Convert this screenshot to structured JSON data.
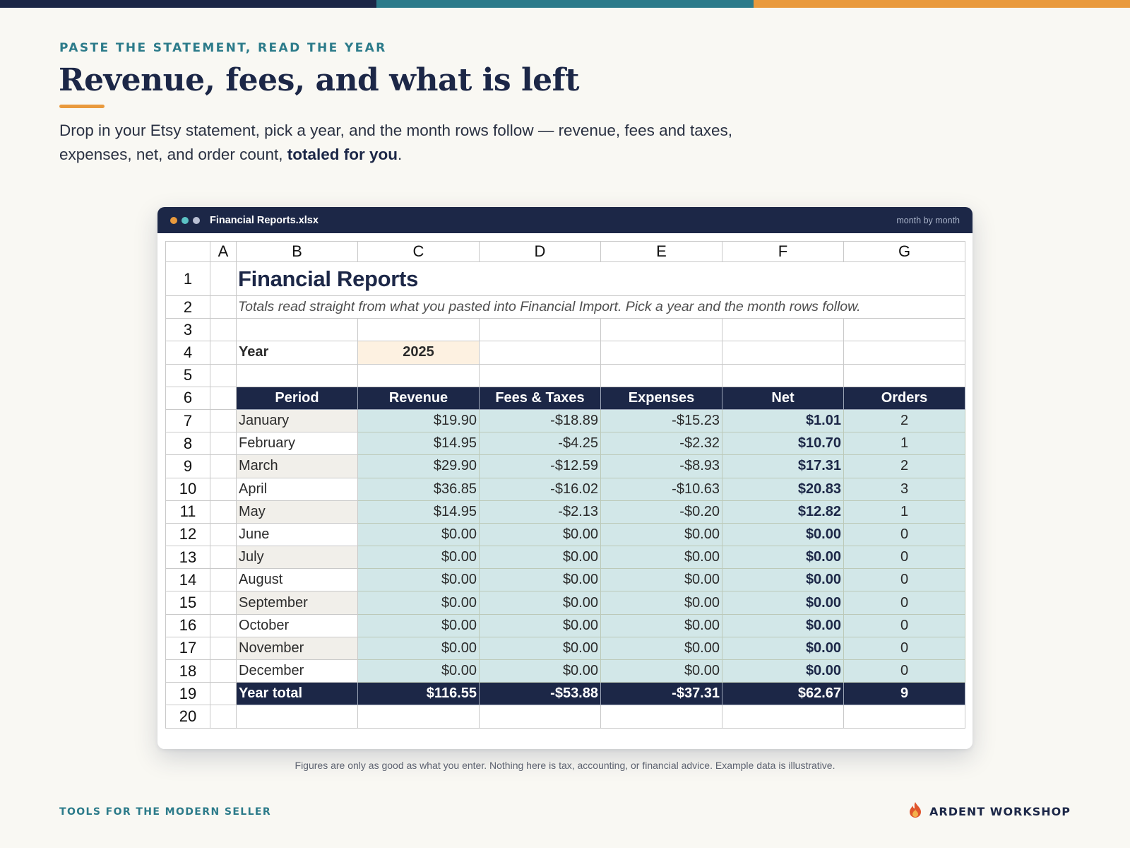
{
  "page": {
    "eyebrow": "PASTE THE STATEMENT, READ THE YEAR",
    "headline": "Revenue, fees, and what is left",
    "intro_text": "Drop in your Etsy statement, pick a year, and the month rows follow — revenue, fees and taxes, expenses, net, and order count,",
    "intro_bold": "totaled for you",
    "intro_end": ".",
    "disclaimer": "Figures are only as good as what you enter. Nothing here is tax, accounting, or financial advice. Example data is illustrative.",
    "footer_left": "TOOLS FOR THE MODERN SELLER",
    "brand": "ARDENT WORKSHOP",
    "brand_icon": "flame-icon"
  },
  "colors": {
    "navy": "#1c2747",
    "teal": "#2c7b8a",
    "orange": "#e99a3d",
    "cell_teal": "#d2e7e8",
    "year_cell": "#fdf1e1"
  },
  "window": {
    "filename": "Financial Reports.xlsx",
    "meta": "month by month",
    "dots": [
      "#e99a3d",
      "#5bc2c5",
      "#b9c0d4"
    ]
  },
  "sheet": {
    "columns": [
      "A",
      "B",
      "C",
      "D",
      "E",
      "F",
      "G"
    ],
    "row_numbers": [
      "1",
      "2",
      "3",
      "4",
      "5",
      "6",
      "7",
      "8",
      "9",
      "10",
      "11",
      "12",
      "13",
      "14",
      "15",
      "16",
      "17",
      "18",
      "19",
      "20"
    ],
    "title": "Financial Reports",
    "subtitle": "Totals read straight from what you pasted into Financial Import. Pick a year and the month rows follow.",
    "year_label": "Year",
    "year_value": "2025",
    "headers": [
      "Period",
      "Revenue",
      "Fees & Taxes",
      "Expenses",
      "Net",
      "Orders"
    ],
    "rows": [
      [
        "January",
        "$19.90",
        "-$18.89",
        "-$15.23",
        "$1.01",
        "2"
      ],
      [
        "February",
        "$14.95",
        "-$4.25",
        "-$2.32",
        "$10.70",
        "1"
      ],
      [
        "March",
        "$29.90",
        "-$12.59",
        "-$8.93",
        "$17.31",
        "2"
      ],
      [
        "April",
        "$36.85",
        "-$16.02",
        "-$10.63",
        "$20.83",
        "3"
      ],
      [
        "May",
        "$14.95",
        "-$2.13",
        "-$0.20",
        "$12.82",
        "1"
      ],
      [
        "June",
        "$0.00",
        "$0.00",
        "$0.00",
        "$0.00",
        "0"
      ],
      [
        "July",
        "$0.00",
        "$0.00",
        "$0.00",
        "$0.00",
        "0"
      ],
      [
        "August",
        "$0.00",
        "$0.00",
        "$0.00",
        "$0.00",
        "0"
      ],
      [
        "September",
        "$0.00",
        "$0.00",
        "$0.00",
        "$0.00",
        "0"
      ],
      [
        "October",
        "$0.00",
        "$0.00",
        "$0.00",
        "$0.00",
        "0"
      ],
      [
        "November",
        "$0.00",
        "$0.00",
        "$0.00",
        "$0.00",
        "0"
      ],
      [
        "December",
        "$0.00",
        "$0.00",
        "$0.00",
        "$0.00",
        "0"
      ]
    ],
    "total": [
      "Year total",
      "$116.55",
      "-$53.88",
      "-$37.31",
      "$62.67",
      "9"
    ]
  }
}
